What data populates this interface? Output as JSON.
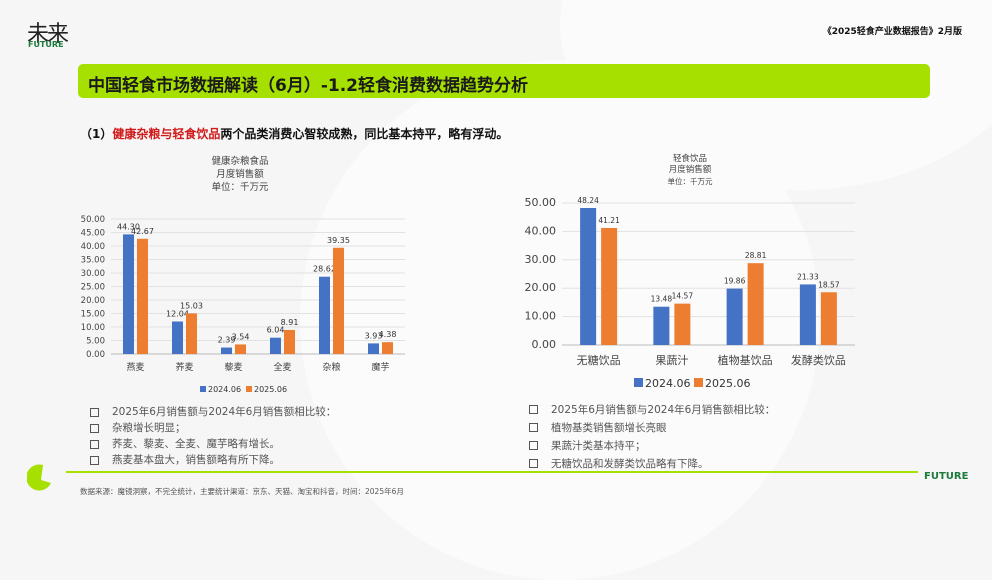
{
  "header": {
    "logo_text": "未来",
    "logo_en": "FUTURE",
    "report_title": "《2025轻食产业数据报告》2月版"
  },
  "banner": {
    "title": "中国轻食市场数据解读（6月）-1.2轻食消费数据趋势分析"
  },
  "subhead": {
    "prefix": "（1）",
    "highlight": "健康杂粮与轻食饮品",
    "rest": "两个品类消费心智较成熟，同比基本持平，略有浮动。"
  },
  "colors": {
    "series_2024": "#4472c4",
    "series_2025": "#ed7d31",
    "accent": "#a6e000",
    "brand_green": "#1c7a3c"
  },
  "chart_data": [
    {
      "type": "bar",
      "title": [
        "健康杂粮食品",
        "月度销售额",
        "单位：千万元"
      ],
      "categories": [
        "燕麦",
        "荞麦",
        "藜麦",
        "全麦",
        "杂粮",
        "魔芋"
      ],
      "series": [
        {
          "name": "2024.06",
          "values": [
            44.3,
            12.04,
            2.39,
            6.04,
            28.62,
            3.93
          ]
        },
        {
          "name": "2025.06",
          "values": [
            42.67,
            15.03,
            3.54,
            8.91,
            39.35,
            4.38
          ]
        }
      ],
      "ylim": [
        0,
        50
      ],
      "yticks": [
        "0.00",
        "5.00",
        "10.00",
        "15.00",
        "20.00",
        "25.00",
        "30.00",
        "35.00",
        "40.00",
        "45.00",
        "50.00"
      ],
      "grid": true,
      "legend": "bottom"
    },
    {
      "type": "bar",
      "title": [
        "轻食饮品",
        "月度销售额",
        "单位：千万元"
      ],
      "categories": [
        "无糖饮品",
        "果蔬汁",
        "植物基饮品",
        "发酵类饮品"
      ],
      "series": [
        {
          "name": "2024.06",
          "values": [
            48.24,
            13.48,
            19.86,
            21.33
          ]
        },
        {
          "name": "2025.06",
          "values": [
            41.21,
            14.57,
            28.81,
            18.57
          ]
        }
      ],
      "ylim": [
        0,
        50
      ],
      "yticks": [
        "0.00",
        "10.00",
        "20.00",
        "30.00",
        "40.00",
        "50.00"
      ],
      "grid": true,
      "legend": "bottom"
    }
  ],
  "notes_left": [
    "2025年6月销售额与2024年6月销售额相比较：",
    "杂粮增长明显；",
    "荞麦、藜麦、全麦、魔芋略有增长。",
    "燕麦基本盘大，销售额略有所下降。"
  ],
  "notes_right": [
    "2025年6月销售额与2024年6月销售额相比较：",
    "植物基类销售额增长亮眼",
    "果蔬汁类基本持平；",
    "无糖饮品和发酵类饮品略有下降。"
  ],
  "footer": {
    "source": "数据来源：魔镜洞察，不完全统计，主要统计渠道：京东、天猫、淘宝和抖音，时间：2025年6月",
    "brand": "FUTURE"
  }
}
